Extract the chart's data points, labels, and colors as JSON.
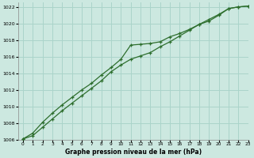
{
  "title": "Graphe pression niveau de la mer (hPa)",
  "bg_color": "#cce8e0",
  "grid_color": "#aad4ca",
  "line_color": "#2d6e2d",
  "marker_color": "#2d6e2d",
  "xlim": [
    -0.5,
    23
  ],
  "ylim": [
    1006,
    1022.5
  ],
  "yticks": [
    1006,
    1008,
    1010,
    1012,
    1014,
    1016,
    1018,
    1020,
    1022
  ],
  "xticks": [
    0,
    1,
    2,
    3,
    4,
    5,
    6,
    7,
    8,
    9,
    10,
    11,
    12,
    13,
    14,
    15,
    16,
    17,
    18,
    19,
    20,
    21,
    22,
    23
  ],
  "series1_x": [
    0,
    1,
    2,
    3,
    4,
    5,
    6,
    7,
    8,
    9,
    10,
    11,
    12,
    13,
    14,
    15,
    16,
    17,
    18,
    19,
    20,
    21,
    22,
    23
  ],
  "series1_y": [
    1006.1,
    1006.8,
    1008.1,
    1009.2,
    1010.2,
    1011.1,
    1012.0,
    1012.8,
    1013.8,
    1014.7,
    1015.7,
    1017.4,
    1017.5,
    1017.6,
    1017.8,
    1018.4,
    1018.8,
    1019.3,
    1019.9,
    1020.3,
    1021.0,
    1021.8,
    1022.0,
    1022.1
  ],
  "series2_x": [
    0,
    1,
    2,
    3,
    4,
    5,
    6,
    7,
    8,
    9,
    10,
    11,
    12,
    13,
    14,
    15,
    16,
    17,
    18,
    19,
    20,
    21,
    22,
    23
  ],
  "series2_y": [
    1006.1,
    1006.5,
    1007.5,
    1008.5,
    1009.5,
    1010.4,
    1011.3,
    1012.2,
    1013.1,
    1014.2,
    1015.0,
    1015.7,
    1016.1,
    1016.5,
    1017.2,
    1017.8,
    1018.5,
    1019.2,
    1019.9,
    1020.5,
    1021.1,
    1021.8,
    1022.0,
    1022.1
  ]
}
